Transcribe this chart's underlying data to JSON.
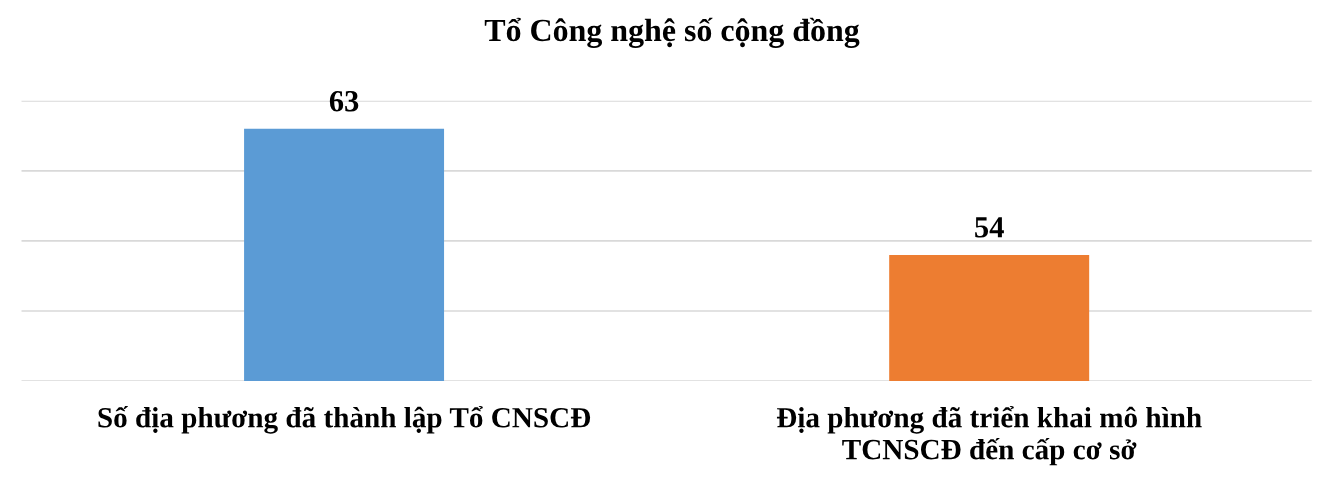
{
  "chart_data": {
    "type": "bar",
    "title": "Tổ Công nghệ số cộng đồng",
    "categories": [
      "Số địa phương đã thành lập Tổ CNSCĐ",
      "Địa phương đã triển khai mô hình\nTCNSCĐ đến cấp cơ sở"
    ],
    "values": [
      63,
      54
    ],
    "colors": [
      "#5b9bd5",
      "#ed7d31"
    ],
    "ylim": [
      45,
      65
    ],
    "yticks": [
      {
        "value": 45,
        "label": null
      },
      {
        "value": 50,
        "label": null
      },
      {
        "value": 55,
        "label": null
      },
      {
        "value": 60,
        "label": null
      },
      {
        "value": 65,
        "label": null
      }
    ],
    "tick_labels": "x",
    "grid": "y",
    "data_labels": true,
    "legend": false
  }
}
